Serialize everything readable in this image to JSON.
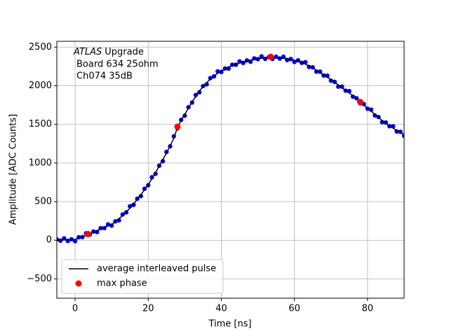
{
  "chart_data": {
    "type": "line",
    "x_label": "Time [ns]",
    "y_label": "Amplitude [ADC Counts]",
    "annotation": {
      "italic": "ATLAS",
      "rest": "Upgrade",
      "lines": [
        "Board 634 25ohm",
        "Ch074 35dB"
      ]
    },
    "xlim": [
      -5,
      90
    ],
    "ylim": [
      -750,
      2575
    ],
    "xticks": [
      0,
      20,
      40,
      60,
      80
    ],
    "yticks": [
      {
        "value": -500,
        "label": "−500"
      },
      0,
      500,
      1000,
      1500,
      2000,
      2500
    ],
    "grid": true,
    "legend": "lower left",
    "x": [
      -5,
      -4,
      -3,
      -2,
      -1,
      0,
      1,
      2,
      3,
      4,
      5,
      6,
      7,
      8,
      9,
      10,
      11,
      12,
      13,
      14,
      15,
      16,
      17,
      18,
      19,
      20,
      21,
      22,
      23,
      24,
      25,
      26,
      27,
      28,
      29,
      30,
      31,
      32,
      33,
      34,
      35,
      36,
      37,
      38,
      39,
      40,
      41,
      42,
      43,
      44,
      45,
      46,
      47,
      48,
      49,
      50,
      51,
      52,
      53,
      54,
      55,
      56,
      57,
      58,
      59,
      60,
      61,
      62,
      63,
      64,
      65,
      66,
      67,
      68,
      69,
      70,
      71,
      72,
      73,
      74,
      75,
      76,
      77,
      78,
      79,
      80,
      81,
      82,
      83,
      84,
      85,
      86,
      87,
      88,
      89,
      90
    ],
    "series": [
      {
        "style": "marker",
        "color": "#0000ff",
        "values": [
          12,
          -6,
          24,
          -9,
          13,
          -12,
          39,
          41,
          90,
          73,
          113,
          107,
          157,
          157,
          205,
          190,
          245,
          258,
          334,
          361,
          440,
          458,
          538,
          572,
          667,
          712,
          815,
          860,
          965,
          1023,
          1144,
          1216,
          1345,
          1448,
          1558,
          1612,
          1722,
          1782,
          1880,
          1915,
          1995,
          2018,
          2099,
          2121,
          2185,
          2178,
          2223,
          2222,
          2272,
          2272,
          2315,
          2295,
          2327,
          2310,
          2354,
          2344,
          2380,
          2348,
          2371,
          2347,
          2376,
          2352,
          2375,
          2333,
          2345,
          2308,
          2329,
          2296,
          2305,
          2243,
          2238,
          2182,
          2182,
          2132,
          2130,
          2065,
          2050,
          1988,
          1989,
          1936,
          1930,
          1858,
          1838,
          1772,
          1762,
          1702,
          1690,
          1615,
          1595,
          1528,
          1524,
          1476,
          1475,
          1408,
          1403,
          1352
        ]
      },
      {
        "name": "average interleaved pulse",
        "style": "line",
        "color": "#000000",
        "values": [
          0,
          2,
          4,
          6,
          8,
          10,
          25,
          45,
          65,
          85,
          105,
          125,
          145,
          165,
          185,
          205,
          240,
          280,
          320,
          365,
          415,
          470,
          530,
          590,
          655,
          720,
          795,
          875,
          960,
          1045,
          1130,
          1220,
          1320,
          1460,
          1550,
          1630,
          1710,
          1790,
          1860,
          1930,
          1990,
          2040,
          2085,
          2125,
          2160,
          2190,
          2215,
          2240,
          2260,
          2280,
          2295,
          2310,
          2322,
          2332,
          2340,
          2348,
          2355,
          2360,
          2363,
          2365,
          2364,
          2360,
          2355,
          2348,
          2340,
          2330,
          2315,
          2300,
          2280,
          2255,
          2230,
          2200,
          2170,
          2140,
          2110,
          2080,
          2045,
          2010,
          1975,
          1940,
          1905,
          1870,
          1830,
          1790,
          1750,
          1710,
          1670,
          1630,
          1590,
          1550,
          1510,
          1480,
          1450,
          1420,
          1395,
          1370
        ]
      },
      {
        "name": "max phase",
        "style": "marker",
        "color": "#ff0000",
        "x": [
          3.5,
          28,
          53.5,
          78
        ],
        "values": [
          80,
          1470,
          2375,
          1790
        ]
      }
    ]
  }
}
